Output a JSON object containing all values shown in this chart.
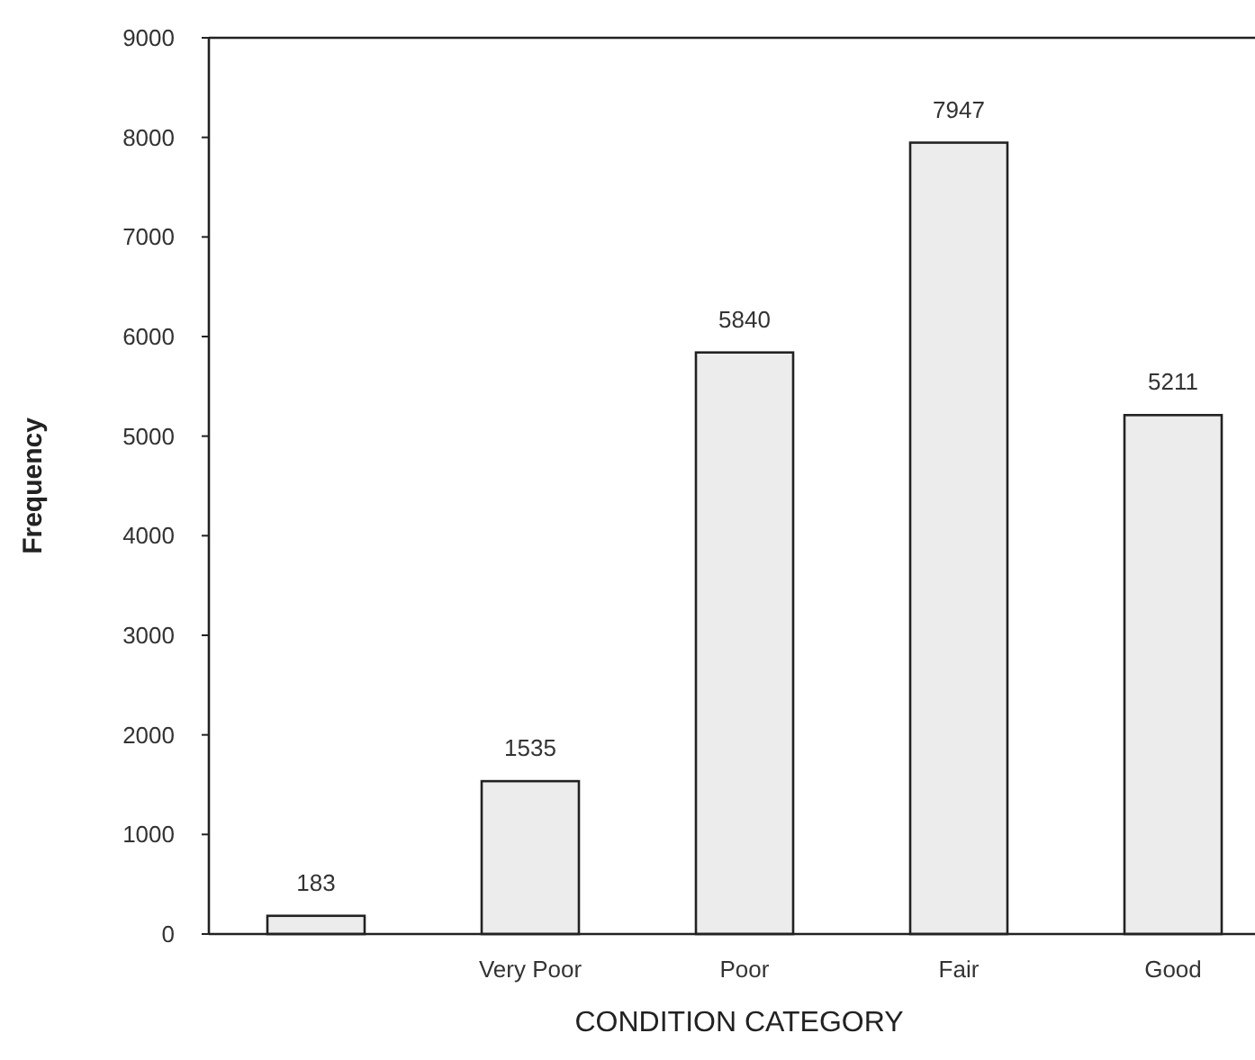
{
  "chart_data": {
    "type": "bar",
    "xlabel": "CONDITION CATEGORY",
    "ylabel": "Frequency",
    "categories": [
      null,
      "Very Poor",
      "Poor",
      "Fair",
      "Good"
    ],
    "values": [
      183,
      1535,
      5840,
      7947,
      5211
    ],
    "color": "#ececec",
    "ylim": [
      0,
      9000
    ],
    "yticks": [
      0,
      1000,
      2000,
      3000,
      4000,
      5000,
      6000,
      7000,
      8000,
      9000
    ],
    "data_labels": true,
    "grid": false
  }
}
